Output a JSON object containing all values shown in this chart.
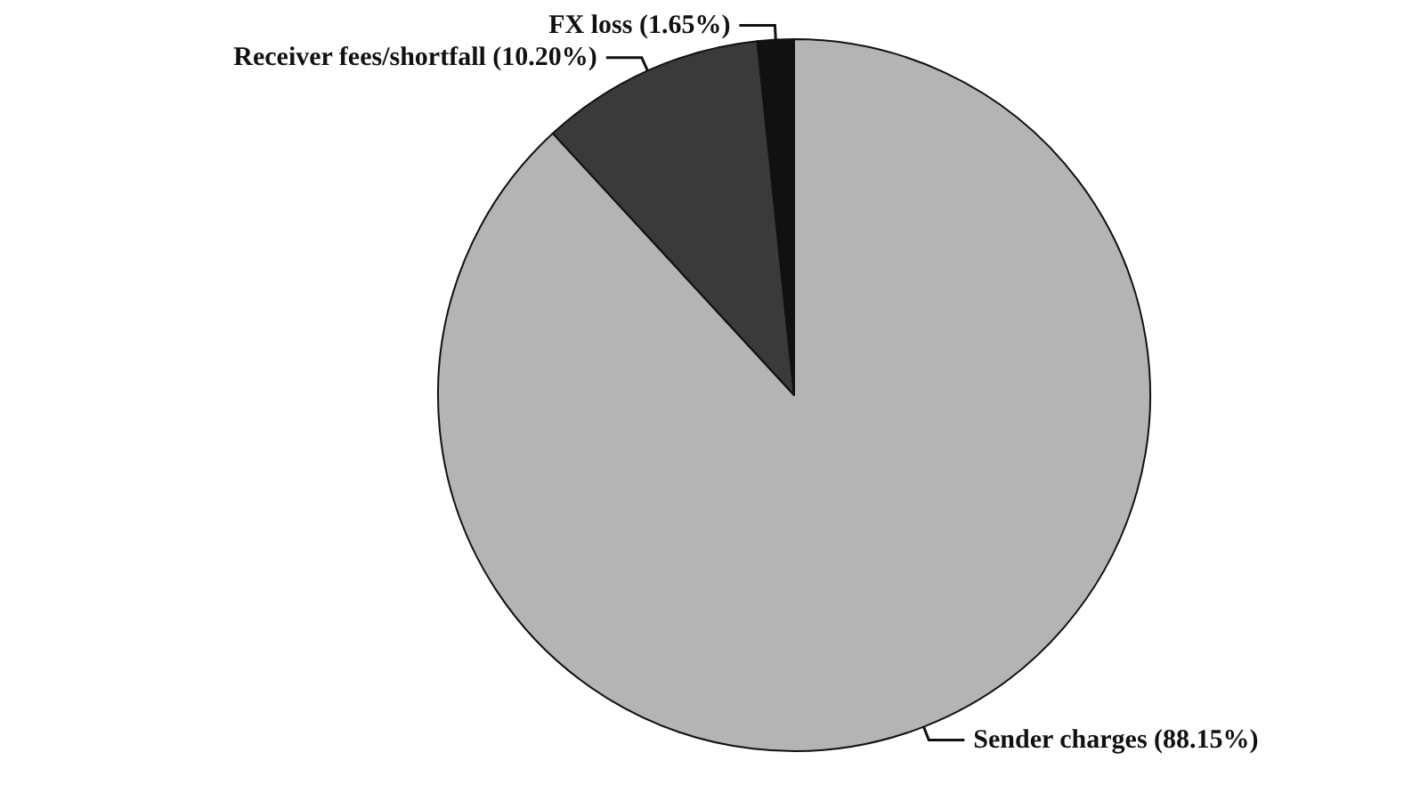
{
  "chart_data": {
    "type": "pie",
    "categories": [
      "Sender charges",
      "Receiver fees/shortfall",
      "FX loss"
    ],
    "values": [
      88.15,
      10.2,
      1.65
    ],
    "value_labels": [
      "(88.15%)",
      "(10.20%)",
      "(1.65%)"
    ],
    "colors": [
      "#b4b4b4",
      "#3a3a3a",
      "#111111"
    ],
    "legend": false
  }
}
